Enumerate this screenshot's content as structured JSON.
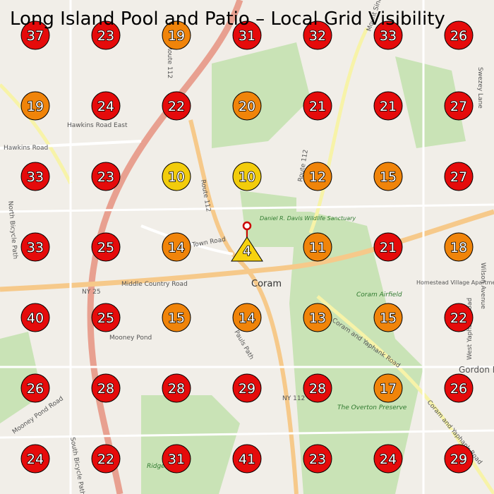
{
  "title": "Long Island Pool and Patio – Local Grid Visibility",
  "grid": {
    "rows": [
      [
        {
          "value": 37,
          "color": "#e50b0b"
        },
        {
          "value": 23,
          "color": "#e50b0b"
        },
        {
          "value": 19,
          "color": "#f0840a"
        },
        {
          "value": 31,
          "color": "#e50b0b"
        },
        {
          "value": 32,
          "color": "#e50b0b"
        },
        {
          "value": 33,
          "color": "#e50b0b"
        },
        {
          "value": 26,
          "color": "#e50b0b"
        }
      ],
      [
        {
          "value": 19,
          "color": "#f0840a"
        },
        {
          "value": 24,
          "color": "#e50b0b"
        },
        {
          "value": 22,
          "color": "#e50b0b"
        },
        {
          "value": 20,
          "color": "#f0840a"
        },
        {
          "value": 21,
          "color": "#e50b0b"
        },
        {
          "value": 21,
          "color": "#e50b0b"
        },
        {
          "value": 27,
          "color": "#e50b0b"
        }
      ],
      [
        {
          "value": 33,
          "color": "#e50b0b"
        },
        {
          "value": 23,
          "color": "#e50b0b"
        },
        {
          "value": 10,
          "color": "#f2cc0c"
        },
        {
          "value": 10,
          "color": "#f2cc0c"
        },
        {
          "value": 12,
          "color": "#f0840a"
        },
        {
          "value": 15,
          "color": "#f0840a"
        },
        {
          "value": 27,
          "color": "#e50b0b"
        }
      ],
      [
        {
          "value": 33,
          "color": "#e50b0b"
        },
        {
          "value": 25,
          "color": "#e50b0b"
        },
        {
          "value": 14,
          "color": "#f0840a"
        },
        {
          "value": 4,
          "color": "#f7d20f",
          "marker": "triangle"
        },
        {
          "value": 11,
          "color": "#f0840a"
        },
        {
          "value": 21,
          "color": "#e50b0b"
        },
        {
          "value": 18,
          "color": "#f0840a"
        }
      ],
      [
        {
          "value": 40,
          "color": "#e50b0b"
        },
        {
          "value": 25,
          "color": "#e50b0b"
        },
        {
          "value": 15,
          "color": "#f0840a"
        },
        {
          "value": 14,
          "color": "#f0840a"
        },
        {
          "value": 13,
          "color": "#f0840a"
        },
        {
          "value": 15,
          "color": "#f0840a"
        },
        {
          "value": 22,
          "color": "#e50b0b"
        }
      ],
      [
        {
          "value": 26,
          "color": "#e50b0b"
        },
        {
          "value": 28,
          "color": "#e50b0b"
        },
        {
          "value": 28,
          "color": "#e50b0b"
        },
        {
          "value": 29,
          "color": "#e50b0b"
        },
        {
          "value": 28,
          "color": "#e50b0b"
        },
        {
          "value": 17,
          "color": "#f0840a"
        },
        {
          "value": 26,
          "color": "#e50b0b"
        }
      ],
      [
        {
          "value": 24,
          "color": "#e50b0b"
        },
        {
          "value": 22,
          "color": "#e50b0b"
        },
        {
          "value": 31,
          "color": "#e50b0b"
        },
        {
          "value": 41,
          "color": "#e50b0b"
        },
        {
          "value": 23,
          "color": "#e50b0b"
        },
        {
          "value": 24,
          "color": "#e50b0b"
        },
        {
          "value": 29,
          "color": "#e50b0b"
        }
      ]
    ]
  },
  "map_labels": [
    "Hawkins Road East",
    "Hawkins Road",
    "Route 112",
    "Route 112",
    "Coram",
    "NY 25",
    "Middle Country Road",
    "Daniel R. Davis Wildlife Sanctuary",
    "Coram Airfield",
    "Homestead Village Apartments",
    "Mooney Pond",
    "Pauls Path",
    "NY 112",
    "The Overton Preserve",
    "Coram and Yaphank Road",
    "Mount Sinai-Coram Road",
    "North Bicycle Path",
    "South Bicycle Path",
    "Wilson Avenue",
    "West Yaphank Road",
    "Swezey Lane",
    "Gordon Heights",
    "Mooney Pond Road",
    "Ridge",
    "Old Town Road",
    "Route 112",
    "Coram and Yaphank Road"
  ]
}
